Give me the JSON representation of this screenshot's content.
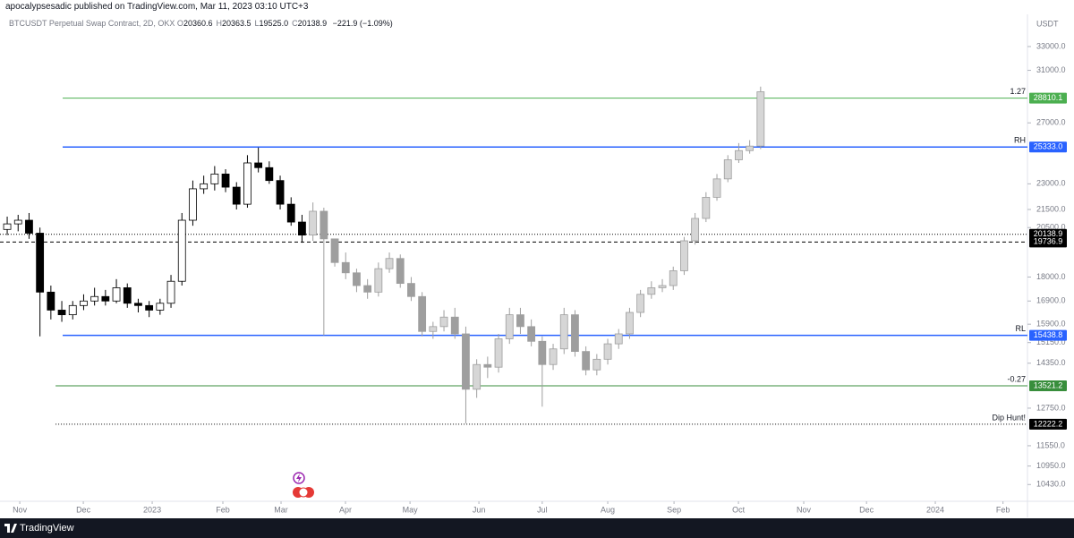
{
  "header": {
    "publisher": "apocalypsesadic published on TradingView.com, Mar 11, 2023 03:10 UTC+3",
    "symbol": "BTCUSDT Perpetual Swap Contract, 2D, OKX",
    "ohlc": [
      {
        "k": "O",
        "v": "20360.6"
      },
      {
        "k": "H",
        "v": "20363.5"
      },
      {
        "k": "L",
        "v": "19525.0"
      },
      {
        "k": "C",
        "v": "20138.9"
      }
    ],
    "change": "−221.9 (−1.09%)"
  },
  "footer": {
    "brand": "TradingView"
  },
  "chart_data": {
    "type": "candlestick",
    "currency": "USDT",
    "log_scale": true,
    "ylim": [
      9980,
      35750
    ],
    "yticks": [
      {
        "value": 33000,
        "label": "33000.0"
      },
      {
        "value": 31000,
        "label": "31000.0"
      },
      {
        "value": 27000,
        "label": "27000.0"
      },
      {
        "value": 23000,
        "label": "23000.0"
      },
      {
        "value": 21500,
        "label": "21500.0"
      },
      {
        "value": 20500,
        "label": "20500.0"
      },
      {
        "value": 18000,
        "label": "18000.0"
      },
      {
        "value": 16900,
        "label": "16900.0"
      },
      {
        "value": 15900,
        "label": "15900.0"
      },
      {
        "value": 15150,
        "label": "15150.0"
      },
      {
        "value": 14350,
        "label": "14350.0"
      },
      {
        "value": 12750,
        "label": "12750.0"
      },
      {
        "value": 11550,
        "label": "11550.0"
      },
      {
        "value": 10950,
        "label": "10950.0"
      },
      {
        "value": 10430,
        "label": "10430.0"
      }
    ],
    "xlim": [
      -0.66,
      93.44
    ],
    "xticks": [
      {
        "value": 1.15,
        "label": "Nov"
      },
      {
        "value": 6.97,
        "label": "Dec"
      },
      {
        "value": 13.28,
        "label": "2023"
      },
      {
        "value": 19.75,
        "label": "Feb"
      },
      {
        "value": 25.08,
        "label": "Mar"
      },
      {
        "value": 30.98,
        "label": "Apr"
      },
      {
        "value": 36.89,
        "label": "May"
      },
      {
        "value": 43.2,
        "label": "Jun"
      },
      {
        "value": 49.0,
        "label": "Jul"
      },
      {
        "value": 55.0,
        "label": "Aug"
      },
      {
        "value": 61.07,
        "label": "Sep"
      },
      {
        "value": 66.97,
        "label": "Oct"
      },
      {
        "value": 72.95,
        "label": "Nov"
      },
      {
        "value": 78.7,
        "label": "Dec"
      },
      {
        "value": 85.0,
        "label": "2024"
      },
      {
        "value": 91.2,
        "label": "Feb"
      }
    ],
    "series": [
      {
        "color": "#000000",
        "up_color": "#ffffff",
        "open": [
          20400,
          20700,
          20900,
          20200,
          17300,
          16500,
          16300,
          16700,
          16900,
          17100,
          16900,
          17500,
          16800,
          16700,
          16500,
          16800,
          17800,
          20900,
          22700,
          23000,
          23600,
          22800,
          21800,
          24300,
          24000,
          23200,
          21800,
          20800
        ],
        "high": [
          21100,
          21200,
          21300,
          20500,
          17600,
          16900,
          16900,
          17200,
          17500,
          17400,
          17900,
          17700,
          17000,
          16900,
          17000,
          18100,
          21300,
          23200,
          23500,
          24100,
          23900,
          23100,
          24800,
          25300,
          24400,
          23500,
          22200,
          21200
        ],
        "low": [
          20100,
          20300,
          19900,
          15400,
          16100,
          16000,
          16100,
          16500,
          16700,
          16700,
          16800,
          16600,
          16400,
          16200,
          16300,
          16600,
          17600,
          20600,
          22400,
          22600,
          22500,
          21500,
          21600,
          23700,
          23000,
          21500,
          20600,
          19700
        ],
        "close": [
          20700,
          20900,
          20200,
          17300,
          16500,
          16300,
          16700,
          16900,
          17100,
          16900,
          17500,
          16800,
          16700,
          16500,
          16800,
          17800,
          20900,
          22700,
          23000,
          23600,
          22800,
          21800,
          24300,
          24000,
          23200,
          21800,
          20800,
          20100
        ]
      },
      {
        "color": "#9e9e9e",
        "up_color": "#d6d6d6",
        "open": [
          20100,
          21400,
          19900,
          18700,
          18200,
          17600,
          17300,
          18400,
          18900,
          17700,
          17100,
          15600,
          15800,
          16200,
          15500,
          13400,
          14300,
          14200,
          15300,
          16300,
          15800,
          15200,
          14300,
          14900,
          16300,
          14800,
          14100,
          14500,
          15100,
          15500,
          16400,
          17200,
          17500,
          17600,
          18300,
          19800,
          21000,
          22200,
          23300,
          24500,
          25100,
          25400
        ],
        "high": [
          21900,
          21600,
          19900,
          19200,
          18400,
          17900,
          18700,
          19200,
          19100,
          18000,
          17300,
          16000,
          16500,
          16600,
          15800,
          14500,
          14600,
          15500,
          16600,
          16600,
          16100,
          15400,
          15100,
          16600,
          16500,
          15000,
          14700,
          15300,
          15700,
          16600,
          17400,
          17800,
          17900,
          18500,
          20000,
          21300,
          22500,
          23600,
          24800,
          25600,
          25800,
          29700
        ],
        "low": [
          19800,
          15440,
          18500,
          17900,
          17300,
          17000,
          17100,
          18200,
          17500,
          16900,
          15400,
          15300,
          15600,
          15300,
          12250,
          13100,
          13800,
          14000,
          15100,
          15500,
          15000,
          12800,
          14100,
          14700,
          14600,
          13900,
          13900,
          14300,
          14900,
          15300,
          16200,
          17000,
          17300,
          17400,
          18100,
          19600,
          20800,
          22000,
          23100,
          24300,
          24900,
          25200
        ],
        "close": [
          21400,
          19900,
          18700,
          18200,
          17600,
          17300,
          18400,
          18900,
          17700,
          17100,
          15600,
          15800,
          16200,
          15500,
          13400,
          14300,
          14200,
          15300,
          16300,
          15800,
          15200,
          14300,
          14900,
          16300,
          14800,
          14100,
          14500,
          15100,
          15500,
          16400,
          17200,
          17500,
          17600,
          18300,
          19800,
          21000,
          22200,
          23300,
          24500,
          25100,
          25400,
          29300
        ]
      }
    ],
    "price_lines": [
      {
        "value": 28810.1,
        "label": "28810.1",
        "name": "1.27",
        "color": "#4caf50",
        "style": "solid"
      },
      {
        "value": 25333.0,
        "label": "25333.0",
        "name": "RH",
        "color": "#2962ff",
        "style": "solid"
      },
      {
        "value": 20138.9,
        "label": "20138.9",
        "color": "#000000",
        "style": "dotted"
      },
      {
        "value": 19736.9,
        "label": "19736.9",
        "color": "#000000",
        "style": "dashed"
      },
      {
        "value": 15438.8,
        "label": "15438.8",
        "name": "RL",
        "color": "#2962ff",
        "style": "solid"
      },
      {
        "value": 13521.2,
        "label": "13521.2",
        "name": "-0.27",
        "color": "#388e3c",
        "style": "solid"
      },
      {
        "value": 12222.2,
        "label": "12222.2",
        "name": "Dip Hunt!",
        "color": "#000000",
        "style": "dotted"
      }
    ]
  }
}
